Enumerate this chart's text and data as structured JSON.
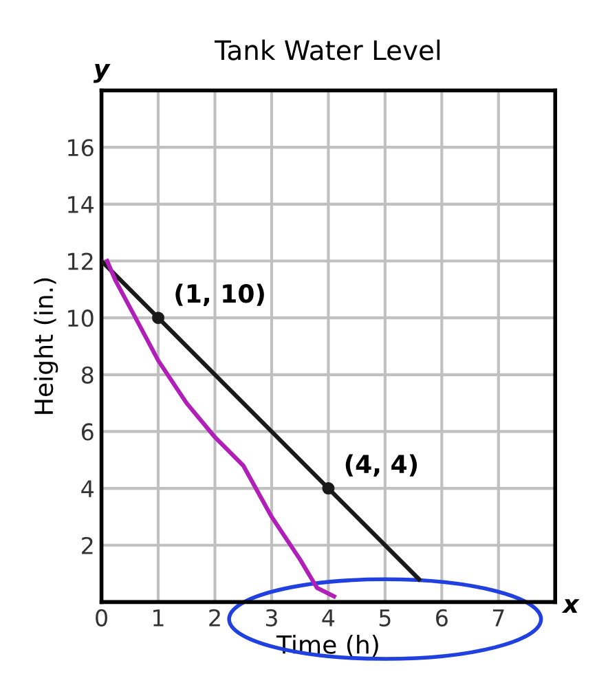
{
  "chart_data": {
    "type": "line",
    "title": "Tank Water Level",
    "xlabel": "Time (h)",
    "ylabel": "Height (in.)",
    "xlim": [
      0,
      8
    ],
    "ylim": [
      0,
      18
    ],
    "xticks": [
      0,
      1,
      2,
      3,
      4,
      5,
      6,
      7
    ],
    "yticks": [
      2,
      4,
      6,
      8,
      10,
      12,
      14,
      16
    ],
    "grid": true,
    "series": [
      {
        "color": "#1a1a1a",
        "x": [
          0,
          1,
          4,
          5.6
        ],
        "values": [
          12,
          10,
          4,
          0.8
        ],
        "marker": "none"
      },
      {
        "color": "#b020b8",
        "x": [
          0.1,
          0.25,
          0.6,
          1,
          1.5,
          2,
          2.5,
          3,
          3.5,
          3.8,
          4.1
        ],
        "values": [
          12,
          11.3,
          10,
          8.5,
          7,
          5.8,
          4.8,
          3,
          1.5,
          0.5,
          0.2
        ],
        "marker": "none"
      },
      {
        "type": "scatter",
        "color": "#1a1a1a",
        "x": [
          1,
          4
        ],
        "values": [
          10,
          4
        ],
        "marker": "circle"
      }
    ],
    "annotations": [
      {
        "text": "(1, 10)",
        "x": 1,
        "y": 10
      },
      {
        "text": "(4, 4)",
        "x": 4,
        "y": 4
      },
      "x",
      "y"
    ]
  }
}
